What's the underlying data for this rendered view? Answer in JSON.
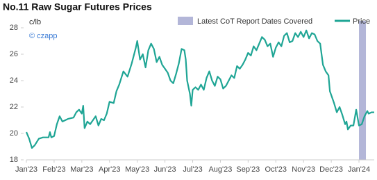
{
  "chart_data": {
    "type": "line",
    "title": "No.11 Raw Sugar Futures Prices",
    "y_label": "c/lb",
    "watermark": "© czapp",
    "xlim": [
      0,
      12.55
    ],
    "xticks": [
      {
        "value": 0,
        "label": "Jan'23"
      },
      {
        "value": 1,
        "label": "Feb'23"
      },
      {
        "value": 2,
        "label": "Mar'23"
      },
      {
        "value": 3,
        "label": "Apr'23"
      },
      {
        "value": 4,
        "label": "May'23"
      },
      {
        "value": 5,
        "label": "Jun'23"
      },
      {
        "value": 6,
        "label": "Jul'23"
      },
      {
        "value": 7,
        "label": "Aug'23"
      },
      {
        "value": 8,
        "label": "Sep'23"
      },
      {
        "value": 9,
        "label": "Oct'23"
      },
      {
        "value": 10,
        "label": "Nov'23"
      },
      {
        "value": 11,
        "label": "Dec'23"
      },
      {
        "value": 12,
        "label": "Jan'24"
      }
    ],
    "ylim": [
      18,
      28
    ],
    "yticks": [
      18,
      20,
      22,
      24,
      26,
      28
    ],
    "highlight": {
      "name": "Latest CoT Report Dates Covered",
      "color": "#b3b6d8",
      "xrange": [
        12.0,
        12.25
      ]
    },
    "x": [
      0,
      0.1,
      0.2,
      0.3,
      0.45,
      0.6,
      0.8,
      0.85,
      0.9,
      1.0,
      1.1,
      1.2,
      1.3,
      1.5,
      1.7,
      1.8,
      1.9,
      2.0,
      2.05,
      2.1,
      2.2,
      2.3,
      2.4,
      2.5,
      2.6,
      2.7,
      2.8,
      2.9,
      3.0,
      3.15,
      3.25,
      3.35,
      3.5,
      3.65,
      3.8,
      3.9,
      3.95,
      4.0,
      4.1,
      4.2,
      4.3,
      4.4,
      4.5,
      4.6,
      4.7,
      4.8,
      4.9,
      5.0,
      5.1,
      5.2,
      5.3,
      5.4,
      5.5,
      5.6,
      5.7,
      5.75,
      5.8,
      5.9,
      5.95,
      6.0,
      6.1,
      6.2,
      6.3,
      6.4,
      6.5,
      6.6,
      6.7,
      6.8,
      6.9,
      7.0,
      7.1,
      7.2,
      7.3,
      7.4,
      7.5,
      7.6,
      7.7,
      7.8,
      7.9,
      8.0,
      8.1,
      8.2,
      8.3,
      8.4,
      8.5,
      8.6,
      8.7,
      8.8,
      8.9,
      9.0,
      9.1,
      9.2,
      9.3,
      9.4,
      9.5,
      9.6,
      9.7,
      9.8,
      9.9,
      10.0,
      10.1,
      10.2,
      10.3,
      10.4,
      10.5,
      10.6,
      10.65,
      10.7,
      10.8,
      10.9,
      10.95,
      11.0,
      11.1,
      11.2,
      11.3,
      11.4,
      11.5,
      11.55,
      11.6,
      11.7,
      11.8,
      11.9,
      12.0,
      12.1,
      12.2,
      12.3,
      12.35,
      12.45,
      12.55
    ],
    "series": [
      {
        "name": "Price",
        "color": "#1fa595",
        "values": [
          20.1,
          19.6,
          18.9,
          19.1,
          19.6,
          19.7,
          19.7,
          20.1,
          19.7,
          19.8,
          20.7,
          21.3,
          20.9,
          21.1,
          21.2,
          21.6,
          21.8,
          21.5,
          22.1,
          20.4,
          20.9,
          20.7,
          21.0,
          21.3,
          20.6,
          21.1,
          21.0,
          21.5,
          22.4,
          22.3,
          23.2,
          23.7,
          24.7,
          24.3,
          25.3,
          26.1,
          26.5,
          27.0,
          25.6,
          26.0,
          25.0,
          26.3,
          26.8,
          26.4,
          25.4,
          25.8,
          25.2,
          24.9,
          24.6,
          24.0,
          23.8,
          24.5,
          25.3,
          26.4,
          26.3,
          25.6,
          24.0,
          23.0,
          22.1,
          23.3,
          23.5,
          23.3,
          23.7,
          23.3,
          24.2,
          24.7,
          24.0,
          23.6,
          24.3,
          24.1,
          23.4,
          23.6,
          24.0,
          24.4,
          24.2,
          25.1,
          24.9,
          25.2,
          25.6,
          26.1,
          25.9,
          26.6,
          26.3,
          26.8,
          27.3,
          27.1,
          26.6,
          26.8,
          25.8,
          26.5,
          26.9,
          26.6,
          27.4,
          27.6,
          26.9,
          27.0,
          27.6,
          27.3,
          27.7,
          27.3,
          27.8,
          27.2,
          27.6,
          27.5,
          27.0,
          26.8,
          26.0,
          25.2,
          24.7,
          24.4,
          23.2,
          22.9,
          22.3,
          21.6,
          22.0,
          21.4,
          20.7,
          20.9,
          20.3,
          20.6,
          20.6,
          21.8,
          20.6,
          20.7,
          21.3,
          21.7,
          21.5,
          21.6,
          21.6
        ]
      }
    ]
  }
}
